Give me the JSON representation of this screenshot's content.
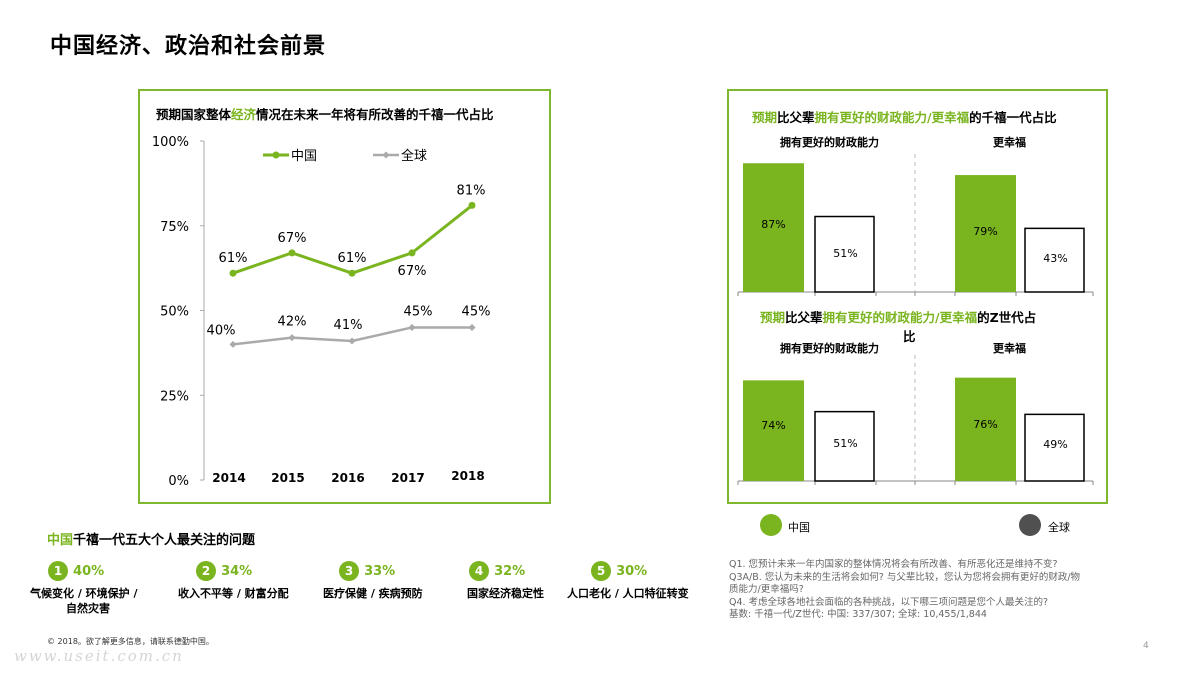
{
  "page": {
    "title": "中国经济、政治和社会前景",
    "copyright": "© 2018。欲了解更多信息，请联系德勤中国。",
    "watermark": "www.useit.com.cn",
    "page_number": "4"
  },
  "colors": {
    "green": "#7ab41f",
    "gray": "#aaaaaa",
    "dark": "#505050"
  },
  "left_chart": {
    "title_pre": "预期国家整体",
    "title_hl": "经济",
    "title_post": "情况在未来一年将有所改善的千禧一代占比"
  },
  "right_chart_1": {
    "title_a": "预期",
    "title_b": "比父辈",
    "title_c": "拥有更好的财政能力/更幸福",
    "title_d": "的千禧一代占比"
  },
  "right_chart_2": {
    "title_a": "预期",
    "title_b": "比父辈",
    "title_c": "拥有更好的财政能力/更幸福",
    "title_d": "的Z世代占",
    "title_e": "比"
  },
  "chart_data": [
    {
      "type": "line",
      "title": "预期国家整体经济情况在未来一年将有所改善的千禧一代占比",
      "x": [
        "2014",
        "2015",
        "2016",
        "2017",
        "2018"
      ],
      "ylim": [
        0,
        100
      ],
      "yticks": [
        "0%",
        "25%",
        "50%",
        "75%",
        "100%"
      ],
      "series": [
        {
          "name": "中国",
          "values": [
            61,
            67,
            61,
            67,
            81
          ],
          "labels": [
            "61%",
            "67%",
            "61%",
            "67%",
            "81%"
          ]
        },
        {
          "name": "全球",
          "values": [
            40,
            42,
            41,
            45,
            45
          ],
          "labels": [
            "40%",
            "42%",
            "41%",
            "45%",
            "45%"
          ]
        }
      ]
    },
    {
      "type": "bar",
      "title": "预期比父辈拥有更好的财政能力/更幸福的千禧一代占比",
      "categories": [
        "拥有更好的财政能力",
        "更幸福"
      ],
      "ylim": [
        0,
        100
      ],
      "series": [
        {
          "name": "中国",
          "values": [
            87,
            79
          ],
          "labels": [
            "87%",
            "79%"
          ]
        },
        {
          "name": "全球",
          "values": [
            51,
            43
          ],
          "labels": [
            "51%",
            "43%"
          ]
        }
      ]
    },
    {
      "type": "bar",
      "title": "预期比父辈拥有更好的财政能力/更幸福的Z世代占比",
      "categories": [
        "拥有更好的财政能力",
        "更幸福"
      ],
      "ylim": [
        0,
        100
      ],
      "series": [
        {
          "name": "中国",
          "values": [
            74,
            76
          ],
          "labels": [
            "74%",
            "76%"
          ]
        },
        {
          "name": "全球",
          "values": [
            51,
            49
          ],
          "labels": [
            "51%",
            "49%"
          ]
        }
      ]
    }
  ],
  "legend_bottom": {
    "china": "中国",
    "global": "全球"
  },
  "issues": {
    "title_hl": "中国",
    "title_rest": "千禧一代五大个人最关注的问题",
    "items": [
      {
        "num": "1",
        "pct": "40%",
        "label1": "气候变化 / 环境保护 /",
        "label2": "自然灾害"
      },
      {
        "num": "2",
        "pct": "34%",
        "label1": "收入不平等 / 财富分配",
        "label2": ""
      },
      {
        "num": "3",
        "pct": "33%",
        "label1": "医疗保健 / 疾病预防",
        "label2": ""
      },
      {
        "num": "4",
        "pct": "32%",
        "label1": "国家经济稳定性",
        "label2": ""
      },
      {
        "num": "5",
        "pct": "30%",
        "label1": "人口老化 / 人口特征转变",
        "label2": ""
      }
    ]
  },
  "notes": {
    "line1": "Q1. 您预计未来一年内国家的整体情况将会有所改善、有所恶化还是维持不变?",
    "line2": "Q3A/B. 您认为未来的生活将会如何? 与父辈比较，您认为您将会拥有更好的财政/物",
    "line3": "质能力/更幸福吗?",
    "line4": "Q4. 考虑全球各地社会面临的各种挑战，以下哪三项问题是您个人最关注的?",
    "line5": "基数: 千禧一代/Z世代: 中国: 337/307; 全球: 10,455/1,844"
  }
}
